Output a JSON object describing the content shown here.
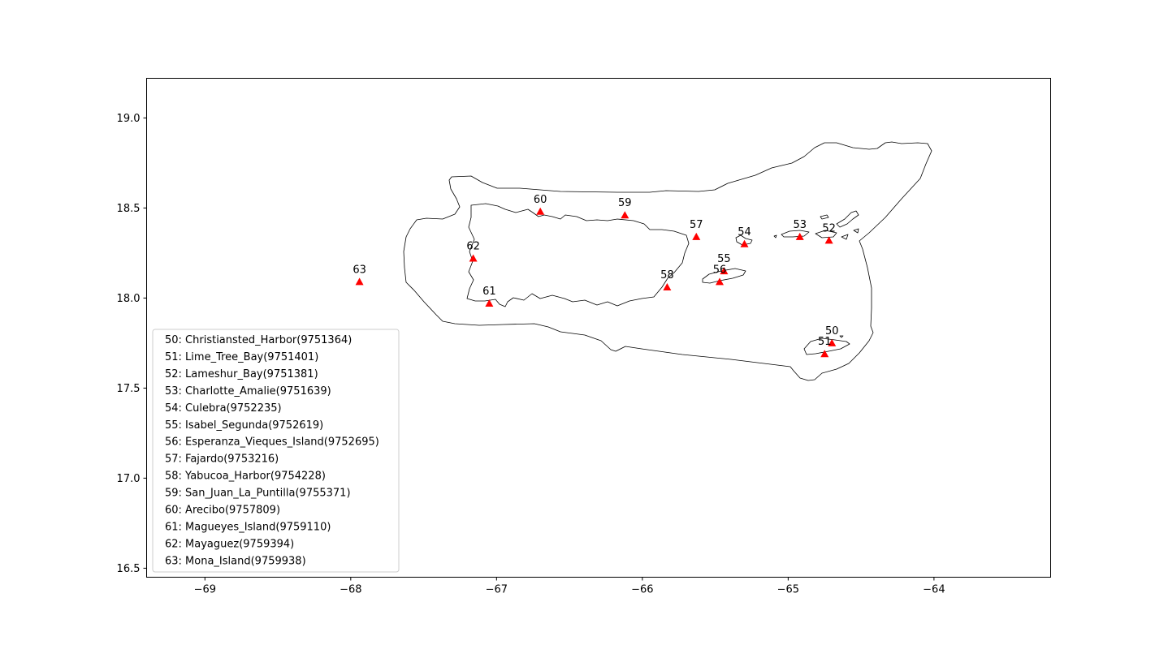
{
  "chart_data": {
    "type": "scatter",
    "title": "",
    "xlabel": "",
    "ylabel": "",
    "xlim": [
      -69.4,
      -63.2
    ],
    "ylim": [
      16.45,
      19.22
    ],
    "xticks": [
      -69,
      -68,
      -67,
      -66,
      -65,
      -64
    ],
    "yticks": [
      16.5,
      17.0,
      17.5,
      18.0,
      18.5,
      19.0
    ],
    "xtick_labels": [
      "−69",
      "−68",
      "−67",
      "−66",
      "−65",
      "−64"
    ],
    "ytick_labels": [
      "16.5",
      "17.0",
      "17.5",
      "18.0",
      "18.5",
      "19.0"
    ],
    "grid": false,
    "legend_position": "lower-left",
    "marker": "triangle",
    "marker_color": "#ff0000",
    "coastline_color": "#000000",
    "stations": [
      {
        "id": "50",
        "name": "Christiansted_Harbor",
        "code": "9751364",
        "lon": -64.7,
        "lat": 17.75
      },
      {
        "id": "51",
        "name": "Lime_Tree_Bay",
        "code": "9751401",
        "lon": -64.75,
        "lat": 17.69
      },
      {
        "id": "52",
        "name": "Lameshur_Bay",
        "code": "9751381",
        "lon": -64.72,
        "lat": 18.32
      },
      {
        "id": "53",
        "name": "Charlotte_Amalie",
        "code": "9751639",
        "lon": -64.92,
        "lat": 18.34
      },
      {
        "id": "54",
        "name": "Culebra",
        "code": "9752235",
        "lon": -65.3,
        "lat": 18.3
      },
      {
        "id": "55",
        "name": "Isabel_Segunda",
        "code": "9752619",
        "lon": -65.44,
        "lat": 18.15
      },
      {
        "id": "56",
        "name": "Esperanza_Vieques_Island",
        "code": "9752695",
        "lon": -65.47,
        "lat": 18.09
      },
      {
        "id": "57",
        "name": "Fajardo",
        "code": "9753216",
        "lon": -65.63,
        "lat": 18.34
      },
      {
        "id": "58",
        "name": "Yabucoa_Harbor",
        "code": "9754228",
        "lon": -65.83,
        "lat": 18.06
      },
      {
        "id": "59",
        "name": "San_Juan_La_Puntilla",
        "code": "9755371",
        "lon": -66.12,
        "lat": 18.46
      },
      {
        "id": "60",
        "name": "Arecibo",
        "code": "9757809",
        "lon": -66.7,
        "lat": 18.48
      },
      {
        "id": "61",
        "name": "Magueyes_Island",
        "code": "9759110",
        "lon": -67.05,
        "lat": 17.97
      },
      {
        "id": "62",
        "name": "Mayaguez",
        "code": "9759394",
        "lon": -67.16,
        "lat": 18.22
      },
      {
        "id": "63",
        "name": "Mona_Island",
        "code": "9759938",
        "lon": -67.94,
        "lat": 18.09
      }
    ],
    "legend_entries": [
      "50: Christiansted_Harbor(9751364)",
      "51: Lime_Tree_Bay(9751401)",
      "52: Lameshur_Bay(9751381)",
      "53: Charlotte_Amalie(9751639)",
      "54: Culebra(9752235)",
      "55: Isabel_Segunda(9752619)",
      "56: Esperanza_Vieques_Island(9752695)",
      "57: Fajardo(9753216)",
      "58: Yabucoa_Harbor(9754228)",
      "59: San_Juan_La_Puntilla(9755371)",
      "60: Arecibo(9757809)",
      "61: Magueyes_Island(9759110)",
      "62: Mayaguez(9759394)",
      "63: Mona_Island(9759938)"
    ]
  }
}
